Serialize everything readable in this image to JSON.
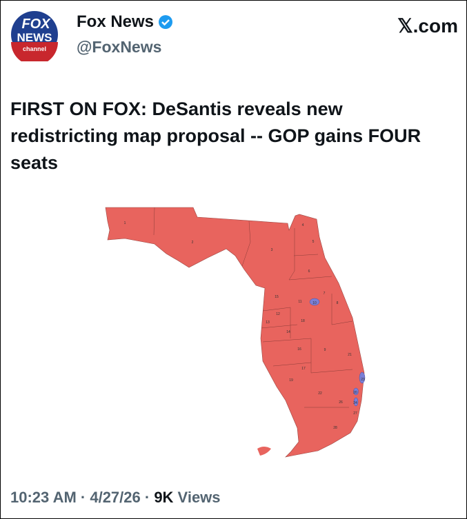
{
  "account": {
    "name": "Fox News",
    "handle": "@FoxNews",
    "verified": true,
    "logo_text": [
      "FOX",
      "NEWS",
      "channel"
    ]
  },
  "site": "𝕏.com",
  "headline": "FIRST ON FOX: DeSantis reveals new redistricting map proposal -- GOP gains FOUR seats",
  "map": {
    "colors": {
      "republican": "#e8645e",
      "democrat": "#7b7fd6"
    },
    "districts": [
      {
        "n": "1",
        "party": "R"
      },
      {
        "n": "2",
        "party": "R"
      },
      {
        "n": "3",
        "party": "R"
      },
      {
        "n": "4",
        "party": "R"
      },
      {
        "n": "5",
        "party": "R"
      },
      {
        "n": "6",
        "party": "R"
      },
      {
        "n": "7",
        "party": "R"
      },
      {
        "n": "8",
        "party": "R"
      },
      {
        "n": "9",
        "party": "R"
      },
      {
        "n": "10",
        "party": "D"
      },
      {
        "n": "11",
        "party": "R"
      },
      {
        "n": "12",
        "party": "R"
      },
      {
        "n": "13",
        "party": "R"
      },
      {
        "n": "14",
        "party": "R"
      },
      {
        "n": "15",
        "party": "R"
      },
      {
        "n": "16",
        "party": "R"
      },
      {
        "n": "17",
        "party": "R"
      },
      {
        "n": "18",
        "party": "R"
      },
      {
        "n": "19",
        "party": "R"
      },
      {
        "n": "20",
        "party": "D"
      },
      {
        "n": "21",
        "party": "R"
      },
      {
        "n": "22",
        "party": "R"
      },
      {
        "n": "23",
        "party": "D"
      },
      {
        "n": "24",
        "party": "D"
      },
      {
        "n": "26",
        "party": "R"
      },
      {
        "n": "27",
        "party": "R"
      },
      {
        "n": "28",
        "party": "R"
      }
    ]
  },
  "footer": {
    "time": "10:23 AM",
    "sep": " · ",
    "date": "4/27/26",
    "views_count": "9K",
    "views_label": " Views"
  }
}
